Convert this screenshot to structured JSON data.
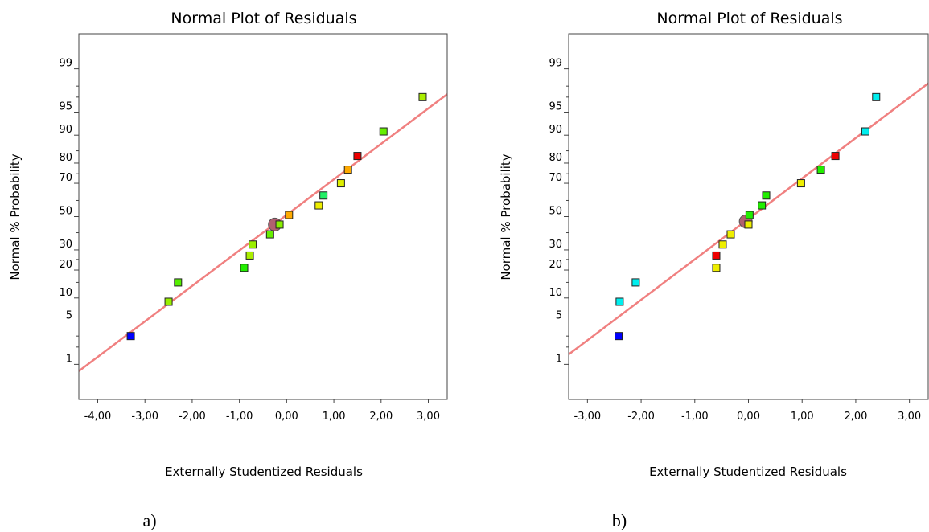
{
  "chart_data": [
    {
      "type": "scatter",
      "title": "Normal Plot of Residuals",
      "xlabel": "Externally Studentized Residuals",
      "ylabel": "Normal % Probability",
      "caption": "a)",
      "xlim": [
        -4.4,
        3.4
      ],
      "ylim": [
        0.2,
        99.8
      ],
      "y_scale": "normal-probability",
      "xticks": [
        "-4,00",
        "-3,00",
        "-2,00",
        "-1,00",
        "0,00",
        "1,00",
        "2,00",
        "3,00"
      ],
      "yticks": [
        "1",
        "5",
        "10",
        "20",
        "30",
        "50",
        "70",
        "80",
        "90",
        "95",
        "99"
      ],
      "fit_line": {
        "color": "#f08080",
        "points": [
          [
            -4.4,
            0.75
          ],
          [
            3.4,
            97.3
          ]
        ]
      },
      "points": [
        {
          "x": -3.3,
          "y": 3.0,
          "color": "#0000ff"
        },
        {
          "x": -2.5,
          "y": 9.0,
          "color": "#99ee00"
        },
        {
          "x": -2.3,
          "y": 15.0,
          "color": "#55ee00"
        },
        {
          "x": -0.9,
          "y": 21.0,
          "color": "#22ee00"
        },
        {
          "x": -0.78,
          "y": 27.0,
          "color": "#aaee00"
        },
        {
          "x": -0.72,
          "y": 33.0,
          "color": "#99ee00"
        },
        {
          "x": -0.35,
          "y": 39.0,
          "color": "#66ee00"
        },
        {
          "x": -0.15,
          "y": 45.0,
          "color": "#88ee00"
        },
        {
          "x": 0.05,
          "y": 51.0,
          "color": "#ffaa00"
        },
        {
          "x": 0.68,
          "y": 57.0,
          "color": "#eeee00"
        },
        {
          "x": 0.78,
          "y": 63.0,
          "color": "#22ee66"
        },
        {
          "x": 1.15,
          "y": 70.0,
          "color": "#ddee00"
        },
        {
          "x": 1.3,
          "y": 77.0,
          "color": "#ffaa00"
        },
        {
          "x": 1.5,
          "y": 83.0,
          "color": "#ee0000"
        },
        {
          "x": 2.05,
          "y": 91.0,
          "color": "#66ee00"
        },
        {
          "x": 2.88,
          "y": 97.0,
          "color": "#aaee00"
        }
      ],
      "mean_marker": {
        "x": -0.25,
        "y": 45.0,
        "color": "#b06070"
      }
    },
    {
      "type": "scatter",
      "title": "Normal Plot of Residuals",
      "xlabel": "Externally Studentized Residuals",
      "ylabel": "Normal % Probability",
      "caption": "b)",
      "xlim": [
        -3.35,
        3.35
      ],
      "ylim": [
        0.2,
        99.8
      ],
      "y_scale": "normal-probability",
      "xticks": [
        "-3,00",
        "-2,00",
        "-1,00",
        "0,00",
        "1,00",
        "2,00",
        "3,00"
      ],
      "yticks": [
        "1",
        "5",
        "10",
        "20",
        "30",
        "50",
        "70",
        "80",
        "90",
        "95",
        "99"
      ],
      "fit_line": {
        "color": "#f08080",
        "points": [
          [
            -3.35,
            1.5
          ],
          [
            3.35,
            98.2
          ]
        ]
      },
      "points": [
        {
          "x": -2.42,
          "y": 3.0,
          "color": "#0000ff"
        },
        {
          "x": -2.4,
          "y": 9.0,
          "color": "#00eeee"
        },
        {
          "x": -2.1,
          "y": 15.0,
          "color": "#00eeee"
        },
        {
          "x": -0.6,
          "y": 21.0,
          "color": "#eeee00"
        },
        {
          "x": -0.6,
          "y": 27.0,
          "color": "#ee0000"
        },
        {
          "x": -0.48,
          "y": 33.0,
          "color": "#eeee00"
        },
        {
          "x": -0.33,
          "y": 39.0,
          "color": "#eeee00"
        },
        {
          "x": 0.0,
          "y": 45.0,
          "color": "#eeee00"
        },
        {
          "x": 0.02,
          "y": 51.0,
          "color": "#22ee00"
        },
        {
          "x": 0.25,
          "y": 57.0,
          "color": "#22ee00"
        },
        {
          "x": 0.33,
          "y": 63.0,
          "color": "#22ee00"
        },
        {
          "x": 0.98,
          "y": 70.0,
          "color": "#eeee00"
        },
        {
          "x": 1.35,
          "y": 77.0,
          "color": "#22ee00"
        },
        {
          "x": 1.62,
          "y": 83.0,
          "color": "#ee0000"
        },
        {
          "x": 2.18,
          "y": 91.0,
          "color": "#00eeee"
        },
        {
          "x": 2.38,
          "y": 97.0,
          "color": "#00eeee"
        }
      ],
      "mean_marker": {
        "x": -0.05,
        "y": 47.0,
        "color": "#b06070"
      }
    }
  ]
}
